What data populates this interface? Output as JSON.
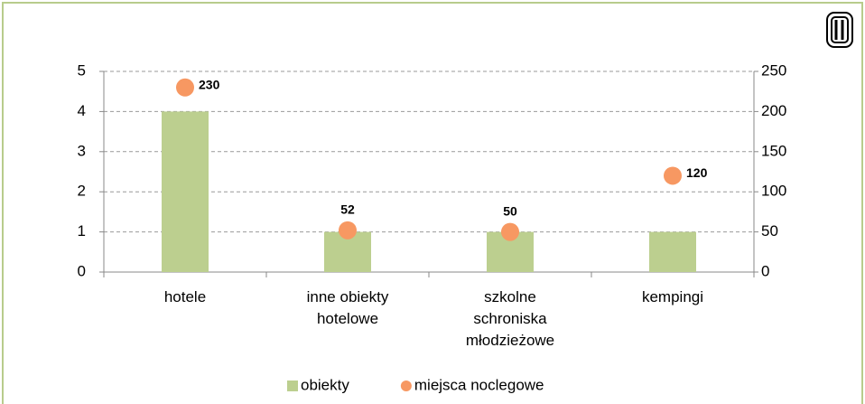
{
  "chart_data": {
    "type": "bar",
    "categories": [
      "hotele",
      "inne obiekty hotelowe",
      "szkolne schroniska młodzieżowe",
      "kempingi"
    ],
    "series": [
      {
        "name": "obiekty",
        "color": "#bccf8f",
        "values": [
          4,
          1,
          1,
          1
        ]
      },
      {
        "name": "miejsca noclegowe",
        "color": "#f79862",
        "values": [
          230,
          52,
          50,
          120
        ],
        "axis": "y2"
      }
    ],
    "ylim": [
      0,
      5
    ],
    "yticks": [
      0,
      1,
      2,
      3,
      4,
      5
    ],
    "y2lim": [
      0,
      250
    ],
    "y2ticks": [
      0,
      50,
      100,
      150,
      200,
      250
    ],
    "grid": true,
    "legend": "bottom"
  }
}
